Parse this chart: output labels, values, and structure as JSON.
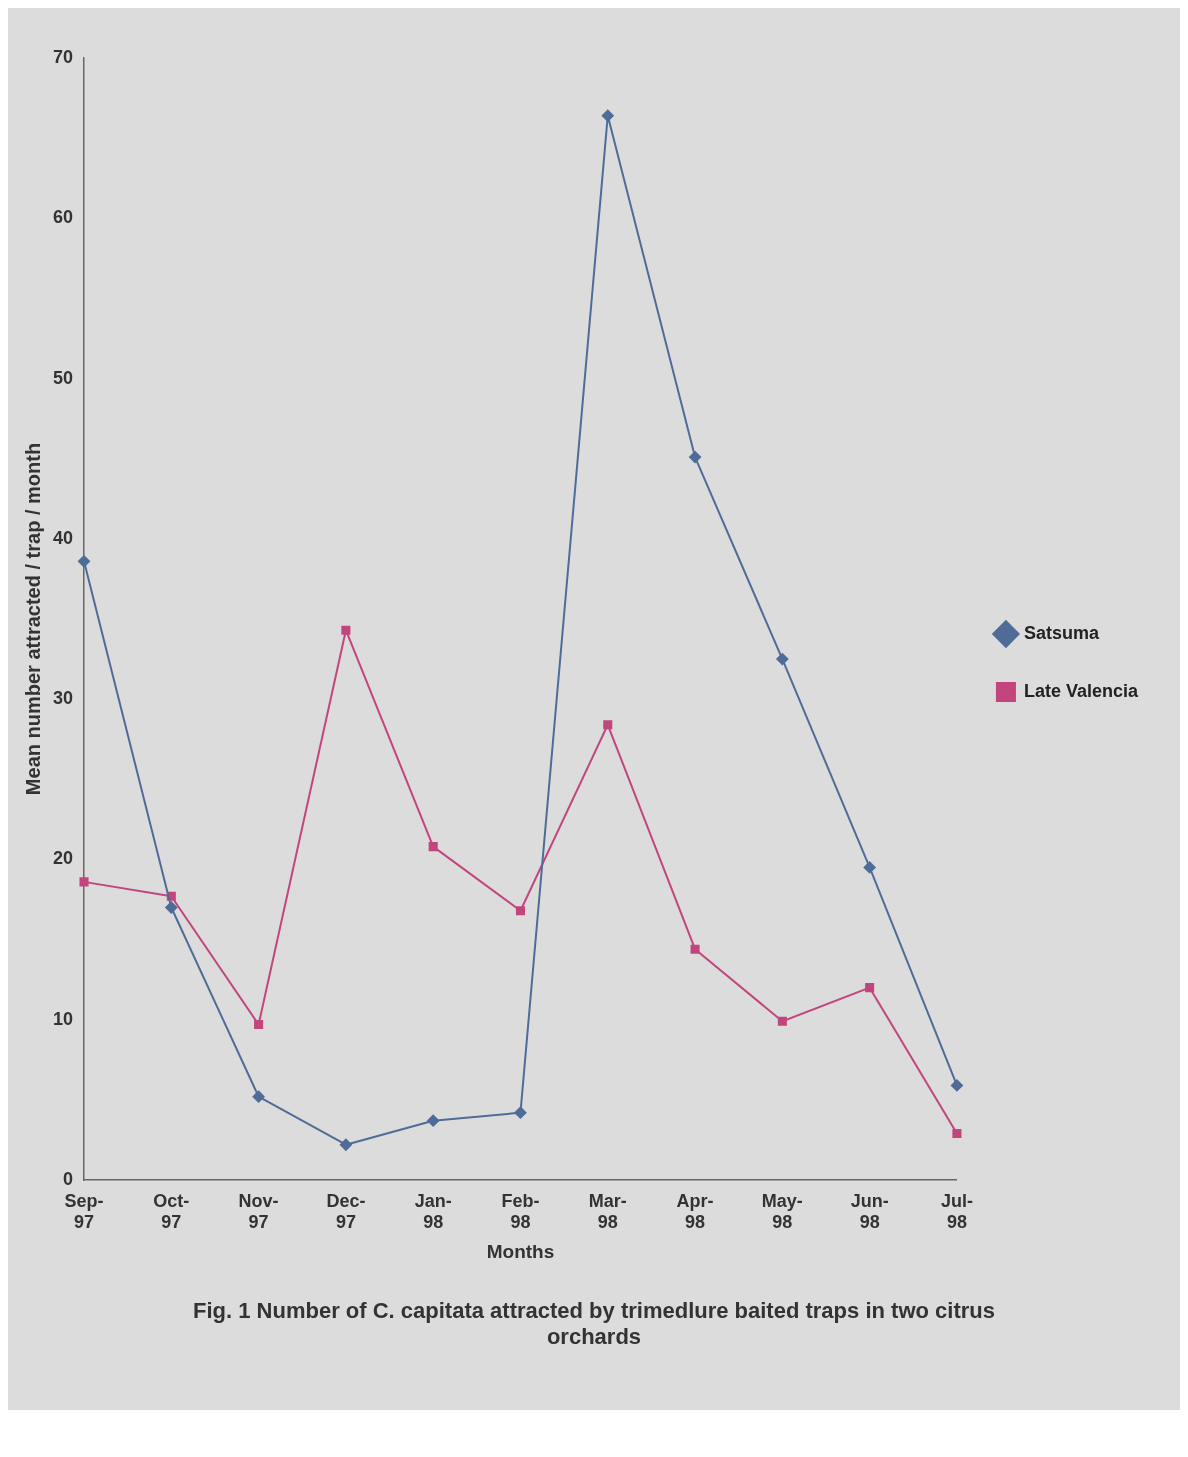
{
  "chart_data": {
    "type": "line",
    "title": "Fig. 1  Number of C. capitata attracted by trimedlure baited traps in two citrus orchards",
    "xlabel": "Months",
    "ylabel": "Mean number attracted / trap / month",
    "categories": [
      "Sep-97",
      "Oct-97",
      "Nov-97",
      "Dec-97",
      "Jan-98",
      "Feb-98",
      "Mar-98",
      "Apr-98",
      "May-98",
      "Jun-98",
      "Jul-98"
    ],
    "series": [
      {
        "name": "Satsuma",
        "color": "#4f6c98",
        "marker": "diamond",
        "values": [
          38.6,
          17.0,
          5.2,
          2.2,
          3.7,
          4.2,
          66.4,
          45.1,
          32.5,
          19.5,
          5.9
        ]
      },
      {
        "name": "Late Valencia",
        "color": "#c2457e",
        "marker": "square",
        "values": [
          18.6,
          17.7,
          9.7,
          34.3,
          20.8,
          16.8,
          28.4,
          14.4,
          9.9,
          12.0,
          2.9
        ]
      }
    ],
    "ylim": [
      0,
      70
    ],
    "yticks": [
      0,
      10,
      20,
      30,
      40,
      50,
      60,
      70
    ],
    "grid": false,
    "legend": "right",
    "line_style": "solid"
  }
}
